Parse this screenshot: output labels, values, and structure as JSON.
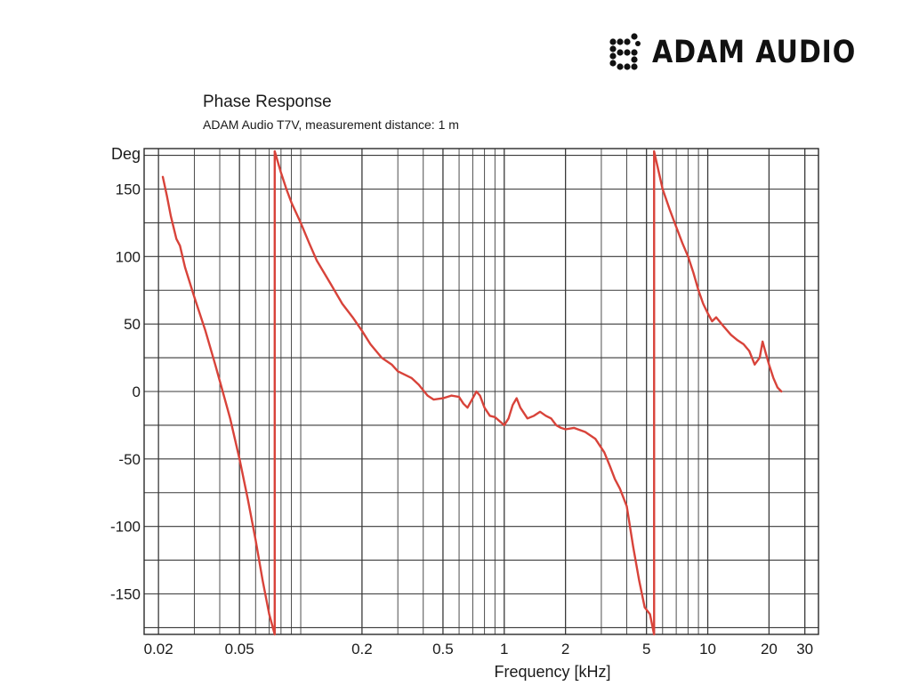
{
  "brand": {
    "name": "ADAM AUDIO",
    "logo_icon": "adam-audio-dot-mark"
  },
  "chart_data": {
    "type": "line",
    "title": "Phase Response",
    "subtitle": "ADAM Audio T7V, measurement distance: 1 m",
    "xlabel": "Frequency [kHz]",
    "ylabel": "Deg",
    "x_scale": "log",
    "xlim": [
      0.017,
      35
    ],
    "ylim": [
      -180,
      180
    ],
    "x_ticks": [
      0.02,
      0.05,
      0.2,
      0.5,
      1,
      2,
      5,
      10,
      20,
      30
    ],
    "x_tick_labels": [
      "0.02",
      "0.05",
      "0.2",
      "0.5",
      "1",
      "2",
      "5",
      "10",
      "20",
      "30"
    ],
    "y_ticks": [
      150,
      100,
      50,
      0,
      -50,
      -100,
      -150
    ],
    "y_tick_labels": [
      "150",
      "100",
      "50",
      "0",
      "-50",
      "-100",
      "-150"
    ],
    "grid": true,
    "line_color": "#d8433a",
    "series": [
      {
        "points": [
          [
            0.021,
            159
          ],
          [
            0.022,
            145
          ],
          [
            0.023,
            130
          ],
          [
            0.0245,
            113
          ],
          [
            0.0255,
            108
          ],
          [
            0.027,
            92
          ],
          [
            0.03,
            70
          ],
          [
            0.034,
            45
          ],
          [
            0.038,
            20
          ],
          [
            0.041,
            2
          ],
          [
            0.045,
            -20
          ],
          [
            0.05,
            -50
          ],
          [
            0.055,
            -80
          ],
          [
            0.06,
            -110
          ],
          [
            0.065,
            -140
          ],
          [
            0.07,
            -165
          ],
          [
            0.0745,
            -180
          ]
        ]
      },
      {
        "points": [
          [
            0.0745,
            178
          ],
          [
            0.08,
            162
          ],
          [
            0.085,
            150
          ],
          [
            0.09,
            140
          ],
          [
            0.1,
            125
          ],
          [
            0.11,
            110
          ],
          [
            0.12,
            97
          ],
          [
            0.14,
            80
          ],
          [
            0.16,
            65
          ],
          [
            0.18,
            55
          ],
          [
            0.2,
            45
          ],
          [
            0.22,
            35
          ],
          [
            0.25,
            25
          ],
          [
            0.28,
            20
          ],
          [
            0.3,
            15
          ],
          [
            0.35,
            10
          ],
          [
            0.38,
            5
          ],
          [
            0.42,
            -3
          ],
          [
            0.45,
            -6
          ],
          [
            0.5,
            -5
          ],
          [
            0.55,
            -3
          ],
          [
            0.6,
            -4
          ],
          [
            0.63,
            -9
          ],
          [
            0.66,
            -12
          ],
          [
            0.7,
            -5
          ],
          [
            0.73,
            0
          ],
          [
            0.76,
            -3
          ],
          [
            0.8,
            -12
          ],
          [
            0.85,
            -18
          ],
          [
            0.9,
            -19
          ],
          [
            0.95,
            -22
          ],
          [
            1.0,
            -25
          ],
          [
            1.05,
            -20
          ],
          [
            1.1,
            -10
          ],
          [
            1.15,
            -5
          ],
          [
            1.2,
            -12
          ],
          [
            1.3,
            -20
          ],
          [
            1.4,
            -18
          ],
          [
            1.5,
            -15
          ],
          [
            1.6,
            -18
          ],
          [
            1.7,
            -20
          ],
          [
            1.8,
            -25
          ],
          [
            1.9,
            -27
          ],
          [
            2.0,
            -28
          ],
          [
            2.2,
            -27
          ],
          [
            2.5,
            -30
          ],
          [
            2.8,
            -35
          ],
          [
            3.1,
            -45
          ],
          [
            3.3,
            -55
          ],
          [
            3.5,
            -65
          ],
          [
            3.7,
            -72
          ],
          [
            4.0,
            -85
          ],
          [
            4.3,
            -115
          ],
          [
            4.6,
            -140
          ],
          [
            4.9,
            -160
          ],
          [
            5.2,
            -165
          ],
          [
            5.45,
            -180
          ]
        ]
      },
      {
        "points": [
          [
            5.45,
            178
          ],
          [
            5.7,
            165
          ],
          [
            6.0,
            150
          ],
          [
            6.5,
            135
          ],
          [
            7.0,
            122
          ],
          [
            7.5,
            110
          ],
          [
            8.0,
            100
          ],
          [
            8.5,
            88
          ],
          [
            9.0,
            75
          ],
          [
            9.5,
            65
          ],
          [
            10.0,
            58
          ],
          [
            10.5,
            52
          ],
          [
            11.0,
            55
          ],
          [
            12.0,
            48
          ],
          [
            13.0,
            42
          ],
          [
            14.0,
            38
          ],
          [
            15.0,
            35
          ],
          [
            16.0,
            30
          ],
          [
            17.0,
            20
          ],
          [
            18.0,
            25
          ],
          [
            18.6,
            37
          ],
          [
            19.3,
            28
          ],
          [
            20.0,
            20
          ],
          [
            21.0,
            10
          ],
          [
            22.0,
            3
          ],
          [
            23.0,
            0
          ]
        ]
      }
    ]
  }
}
